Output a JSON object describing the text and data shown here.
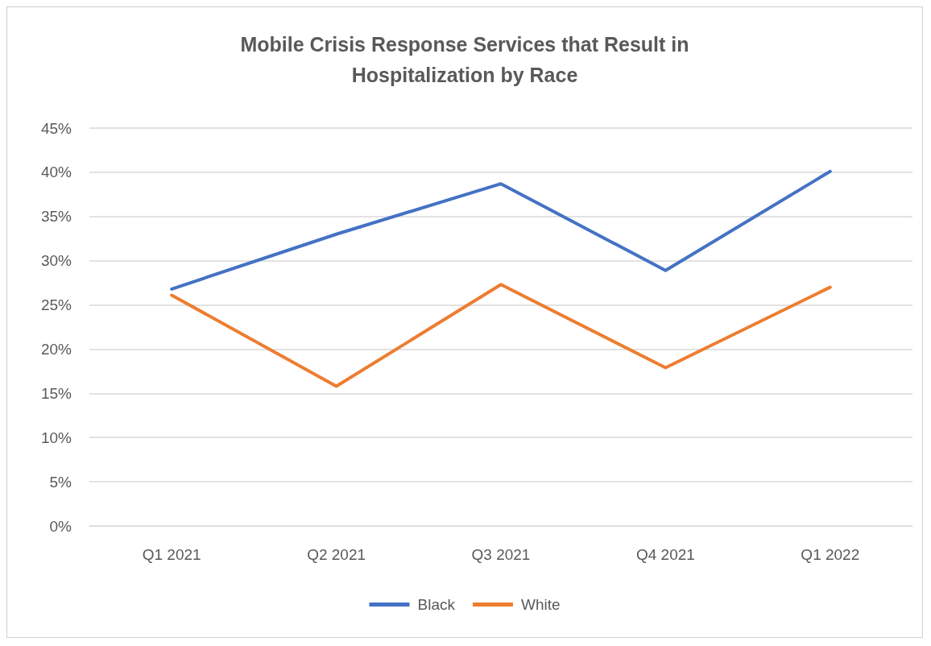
{
  "chart_data": {
    "type": "line",
    "title": "Mobile Crisis Response Services that Result in\nHospitalization by Race",
    "categories": [
      "Q1 2021",
      "Q2 2021",
      "Q3 2021",
      "Q4 2021",
      "Q1 2022"
    ],
    "series": [
      {
        "name": "Black",
        "color": "#4472c4",
        "values": [
          26.8,
          33,
          38.7,
          28.9,
          40.1
        ]
      },
      {
        "name": "White",
        "color": "#ed7d31",
        "values": [
          26.1,
          15.8,
          27.3,
          17.9,
          27.0
        ]
      }
    ],
    "ylim": [
      0,
      45
    ],
    "yticks": [
      {
        "value": 0,
        "label": "0%"
      },
      {
        "value": 5,
        "label": "5%"
      },
      {
        "value": 10,
        "label": "10%"
      },
      {
        "value": 15,
        "label": "15%"
      },
      {
        "value": 20,
        "label": "20%"
      },
      {
        "value": 25,
        "label": "25%"
      },
      {
        "value": 30,
        "label": "30%"
      },
      {
        "value": 35,
        "label": "35%"
      },
      {
        "value": 40,
        "label": "40%"
      },
      {
        "value": 45,
        "label": "45%"
      }
    ],
    "grid": "y",
    "legend": "bottom",
    "marker": "none",
    "line_style": "solid"
  }
}
